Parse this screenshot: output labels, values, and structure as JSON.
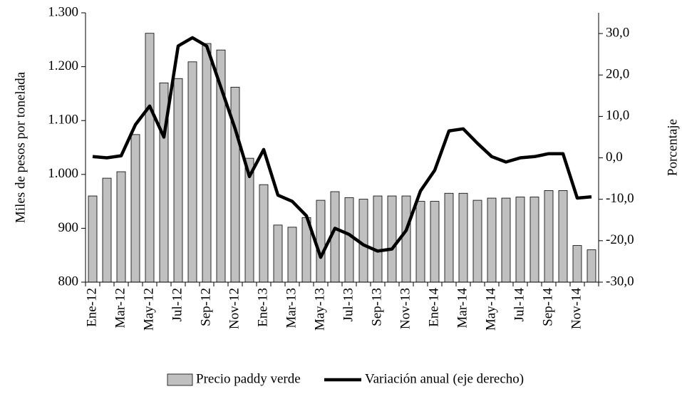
{
  "chart_data": {
    "type": "bar",
    "categories": [
      "Ene-12",
      null,
      "Mar-12",
      null,
      "May-12",
      null,
      "Jul-12",
      null,
      "Sep-12",
      null,
      "Nov-12",
      null,
      "Ene-13",
      null,
      "Mar-13",
      null,
      "May-13",
      null,
      "Jul-13",
      null,
      "Sep-13",
      null,
      "Nov-13",
      null,
      "Ene-14",
      null,
      "Mar-14",
      null,
      "May-14",
      null,
      "Jul-14",
      null,
      "Sep-14",
      null,
      "Nov-14",
      null
    ],
    "series": [
      {
        "name": "Precio paddy verde",
        "type": "bar",
        "color": "#c0c0c0",
        "values": [
          960,
          993,
          1005,
          1074,
          1262,
          1170,
          1178,
          1209,
          1243,
          1231,
          1162,
          1030,
          981,
          906,
          902,
          920,
          952,
          968,
          957,
          954,
          960,
          960,
          960,
          950,
          950,
          965,
          965,
          952,
          956,
          956,
          958,
          958,
          970,
          970,
          868,
          860
        ]
      },
      {
        "name": "Variación anual (eje derecho)",
        "type": "line",
        "color": "#000000",
        "axis": "y2",
        "values": [
          0.3,
          0,
          0.5,
          8,
          12.5,
          5,
          27,
          29,
          27,
          17,
          7,
          -4.5,
          2,
          -9,
          -10.5,
          -14,
          -24,
          -17,
          -18.5,
          -21,
          -22.5,
          -22,
          -17.5,
          -8,
          -3,
          6.5,
          7,
          3.5,
          0.3,
          -1,
          0,
          0.3,
          1,
          1,
          -9.7,
          -9.4
        ]
      }
    ],
    "y_label": "Miles de pesos por tonelada",
    "y2_label": "Porcentaje",
    "ylim": [
      800,
      1300
    ],
    "yticks": [
      800,
      900,
      {
        "value": 1000,
        "label": "1.000"
      },
      {
        "value": 1100,
        "label": "1.100"
      },
      {
        "value": 1200,
        "label": "1.200"
      },
      {
        "value": 1300,
        "label": "1.300"
      }
    ],
    "y2lim": [
      -30,
      35
    ],
    "y2ticks": [
      {
        "value": -30,
        "label": "-30,0"
      },
      {
        "value": -20,
        "label": "-20,0"
      },
      {
        "value": -10,
        "label": "-10,0"
      },
      {
        "value": 0,
        "label": "0,0"
      },
      {
        "value": 10,
        "label": "10,0"
      },
      {
        "value": 20,
        "label": "20,0"
      },
      {
        "value": 30,
        "label": "30,0"
      }
    ],
    "legend": "bottom"
  }
}
